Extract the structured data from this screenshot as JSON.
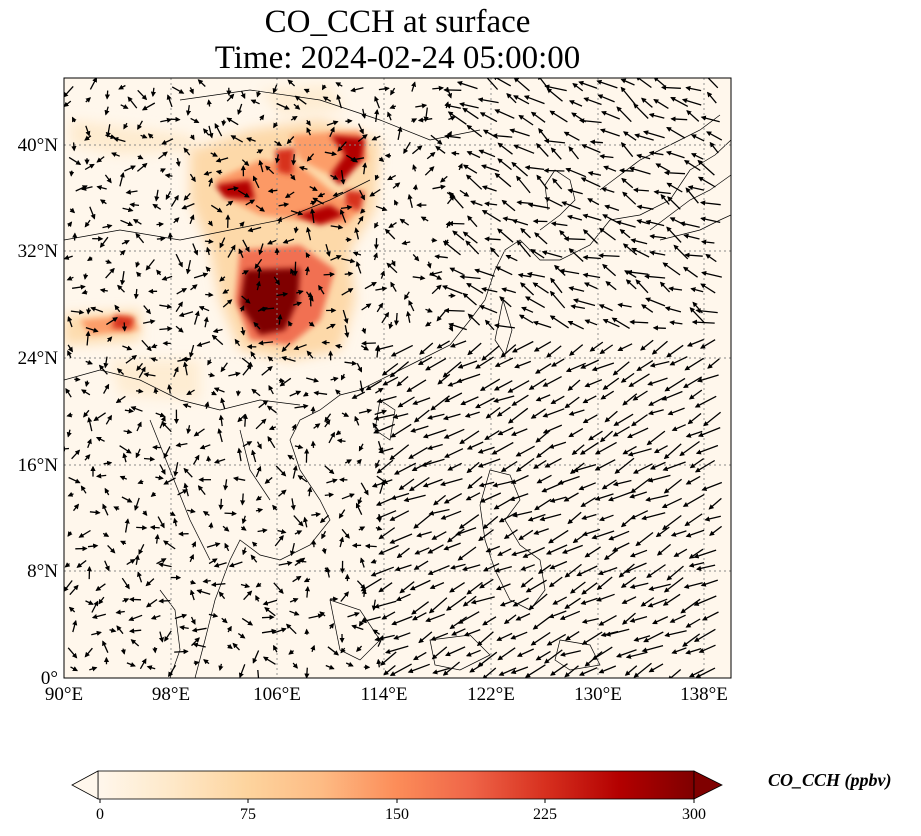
{
  "title": {
    "line1": "CO_CCH at surface",
    "line2": "Time: 2024-02-24 05:00:00"
  },
  "axes": {
    "lon_ticks": [
      "90°E",
      "98°E",
      "106°E",
      "114°E",
      "122°E",
      "130°E",
      "138°E"
    ],
    "lat_ticks": [
      "0°",
      "8°N",
      "16°N",
      "24°N",
      "32°N",
      "40°N"
    ],
    "lon_range": [
      90,
      140
    ],
    "lat_range": [
      0,
      45
    ],
    "gridlines": "dotted"
  },
  "colorbar": {
    "label": "CO_CCH (ppbv)",
    "ticks": [
      "0",
      "75",
      "150",
      "225",
      "300"
    ],
    "range": [
      0,
      300
    ],
    "colormap": "OrRd",
    "extend": "both",
    "colors": [
      "#fff7ec",
      "#fee8c8",
      "#fdd49e",
      "#fdbb84",
      "#fc8d59",
      "#ef6548",
      "#d7301f",
      "#b30000",
      "#7f0000"
    ]
  },
  "map": {
    "background_color": "#fff7ec",
    "coastline_color": "#000000",
    "vector_color": "#000000"
  }
}
